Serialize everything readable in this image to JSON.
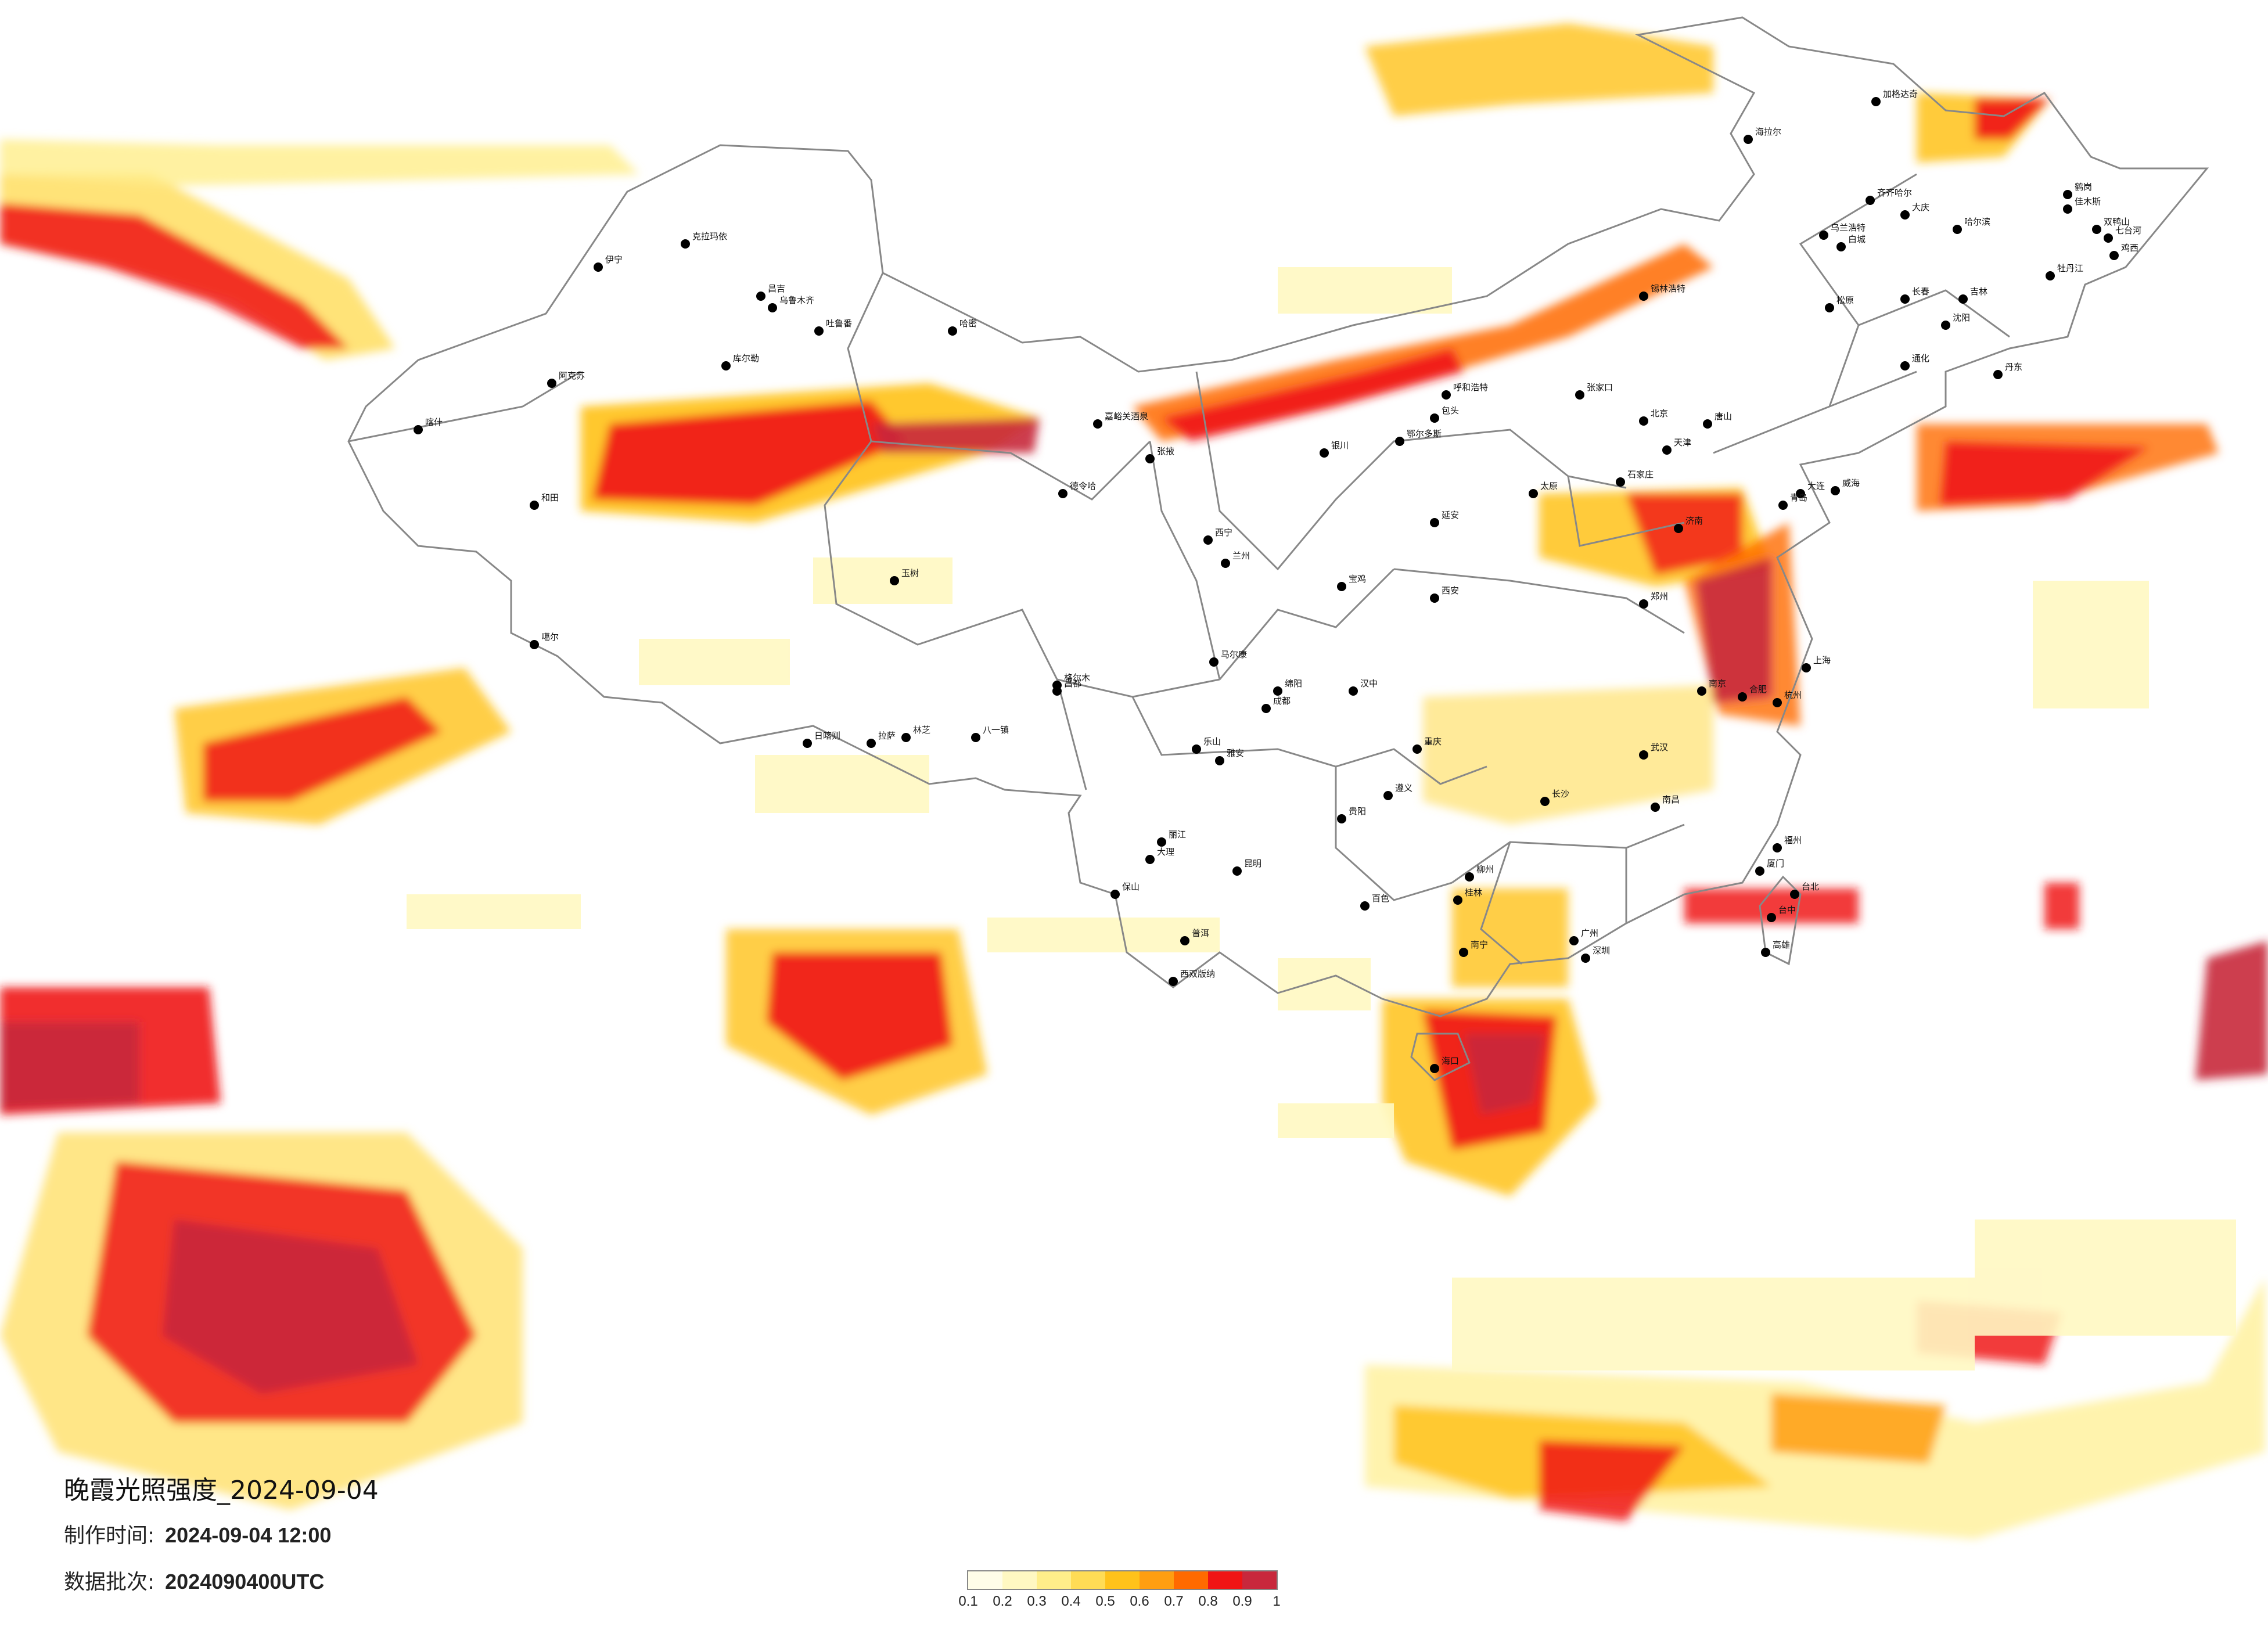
{
  "map": {
    "title": "晚霞光照强度_2024-09-04",
    "made_time_label": "制作时间:",
    "made_time_value": "2024-09-04 12:00",
    "batch_label": "数据批次:",
    "batch_value": "2024090400UTC"
  },
  "legend": {
    "ticks": [
      "0.1",
      "0.2",
      "0.3",
      "0.4",
      "0.5",
      "0.6",
      "0.7",
      "0.8",
      "0.9",
      "1"
    ],
    "colors": [
      "#fffde8",
      "#fff8c2",
      "#ffee8a",
      "#ffdc55",
      "#ffc21a",
      "#ff9e10",
      "#ff6a00",
      "#f01414",
      "#c8283c"
    ]
  },
  "cities": [
    {
      "name": "克拉玛依"
    },
    {
      "name": "伊宁"
    },
    {
      "name": "昌吉"
    },
    {
      "name": "乌鲁木齐"
    },
    {
      "name": "吐鲁番"
    },
    {
      "name": "哈密"
    },
    {
      "name": "库尔勒"
    },
    {
      "name": "阿克苏"
    },
    {
      "name": "喀什"
    },
    {
      "name": "和田"
    },
    {
      "name": "嘉峪关酒泉"
    },
    {
      "name": "张掖"
    },
    {
      "name": "德令哈"
    },
    {
      "name": "格尔木"
    },
    {
      "name": "西宁"
    },
    {
      "name": "兰州"
    },
    {
      "name": "银川"
    },
    {
      "name": "呼和浩特"
    },
    {
      "name": "包头"
    },
    {
      "name": "鄂尔多斯"
    },
    {
      "name": "海拉尔"
    },
    {
      "name": "加格达奇"
    },
    {
      "name": "齐齐哈尔"
    },
    {
      "name": "大庆"
    },
    {
      "name": "哈尔滨"
    },
    {
      "name": "鹤岗"
    },
    {
      "name": "佳木斯"
    },
    {
      "name": "双鸭山"
    },
    {
      "name": "七台河"
    },
    {
      "name": "鸡西"
    },
    {
      "name": "牡丹江"
    },
    {
      "name": "乌兰浩特"
    },
    {
      "name": "白城"
    },
    {
      "name": "松原"
    },
    {
      "name": "长春"
    },
    {
      "name": "吉林"
    },
    {
      "name": "通化"
    },
    {
      "name": "锡林浩特"
    },
    {
      "name": "沈阳"
    },
    {
      "name": "大连"
    },
    {
      "name": "丹东"
    },
    {
      "name": "北京"
    },
    {
      "name": "天津"
    },
    {
      "name": "张家口"
    },
    {
      "name": "唐山"
    },
    {
      "name": "石家庄"
    },
    {
      "name": "太原"
    },
    {
      "name": "济南"
    },
    {
      "name": "青岛"
    },
    {
      "name": "威海"
    },
    {
      "name": "郑州"
    },
    {
      "name": "西安"
    },
    {
      "name": "延安"
    },
    {
      "name": "宝鸡"
    },
    {
      "name": "汉中"
    },
    {
      "name": "拉萨"
    },
    {
      "name": "日喀则"
    },
    {
      "name": "林芝"
    },
    {
      "name": "八一镇"
    },
    {
      "name": "昌都"
    },
    {
      "name": "噶尔"
    },
    {
      "name": "玉树"
    },
    {
      "name": "马尔康"
    },
    {
      "name": "成都"
    },
    {
      "name": "雅安"
    },
    {
      "name": "乐山"
    },
    {
      "name": "绵阳"
    },
    {
      "name": "重庆"
    },
    {
      "name": "贵阳"
    },
    {
      "name": "遵义"
    },
    {
      "name": "昆明"
    },
    {
      "name": "大理"
    },
    {
      "name": "丽江"
    },
    {
      "name": "保山"
    },
    {
      "name": "普洱"
    },
    {
      "name": "西双版纳"
    },
    {
      "name": "南宁"
    },
    {
      "name": "桂林"
    },
    {
      "name": "柳州"
    },
    {
      "name": "百色"
    },
    {
      "name": "广州"
    },
    {
      "name": "深圳"
    },
    {
      "name": "海口"
    },
    {
      "name": "长沙"
    },
    {
      "name": "武汉"
    },
    {
      "name": "南昌"
    },
    {
      "name": "合肥"
    },
    {
      "name": "南京"
    },
    {
      "name": "上海"
    },
    {
      "name": "杭州"
    },
    {
      "name": "福州"
    },
    {
      "name": "厦门"
    },
    {
      "name": "台北"
    },
    {
      "name": "高雄"
    },
    {
      "name": "台中"
    }
  ]
}
